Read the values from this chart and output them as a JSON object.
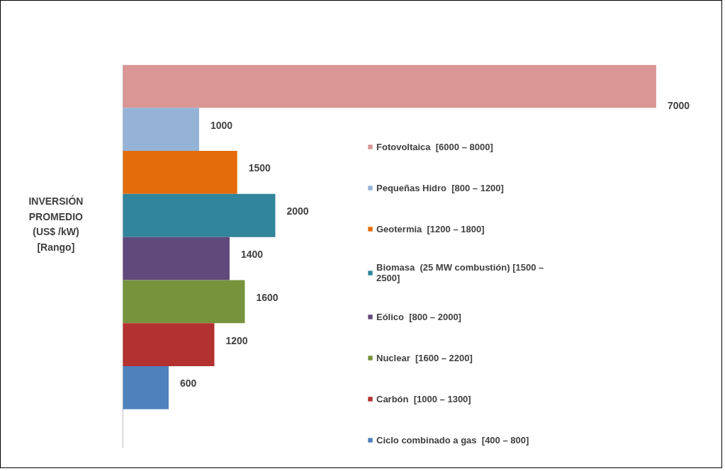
{
  "chart_data": {
    "type": "bar",
    "orientation": "horizontal",
    "stacked": true,
    "annotations": [
      "INVERSIÓN\nPROMEDIO\n(US$ /kW)\n[Rango]"
    ],
    "categories": [
      null,
      null,
      null,
      null,
      null,
      null,
      null,
      null
    ],
    "series": [
      {
        "name": "Fotovoltaica  [6000 – 8000]",
        "color": "#d99694",
        "values": [
          7000,
          null,
          null,
          null,
          null,
          null,
          null,
          null
        ]
      },
      {
        "name": "Pequeñas Hidro  [800 – 1200]",
        "color": "#95b3d7",
        "values": [
          null,
          1000,
          null,
          null,
          null,
          null,
          null,
          null
        ]
      },
      {
        "name": "Geotermia  [1200 – 1800]",
        "color": "#e46c0a",
        "values": [
          null,
          null,
          1500,
          null,
          null,
          null,
          null,
          null
        ]
      },
      {
        "name": "Biomasa  (25 MW combustión) [1500 –\n2500]",
        "color": "#31859c",
        "values": [
          null,
          null,
          null,
          2000,
          null,
          null,
          null,
          null
        ]
      },
      {
        "name": "Eólico  [800 – 2000]",
        "color": "#604a7b",
        "values": [
          null,
          null,
          null,
          null,
          1400,
          null,
          null,
          null
        ]
      },
      {
        "name": "Nuclear  [1600 – 2200]",
        "color": "#77933c",
        "values": [
          null,
          null,
          null,
          null,
          null,
          1600,
          null,
          null
        ]
      },
      {
        "name": "Carbón  [1000 – 1300]",
        "color": "#b3312f",
        "values": [
          null,
          null,
          null,
          null,
          null,
          null,
          1200,
          null
        ]
      },
      {
        "name": "Ciclo combinado a gas  [400 – 800]",
        "color": "#4f81bd",
        "values": [
          null,
          null,
          null,
          null,
          null,
          null,
          null,
          600
        ]
      }
    ],
    "data_labels": true,
    "legend": "right"
  }
}
